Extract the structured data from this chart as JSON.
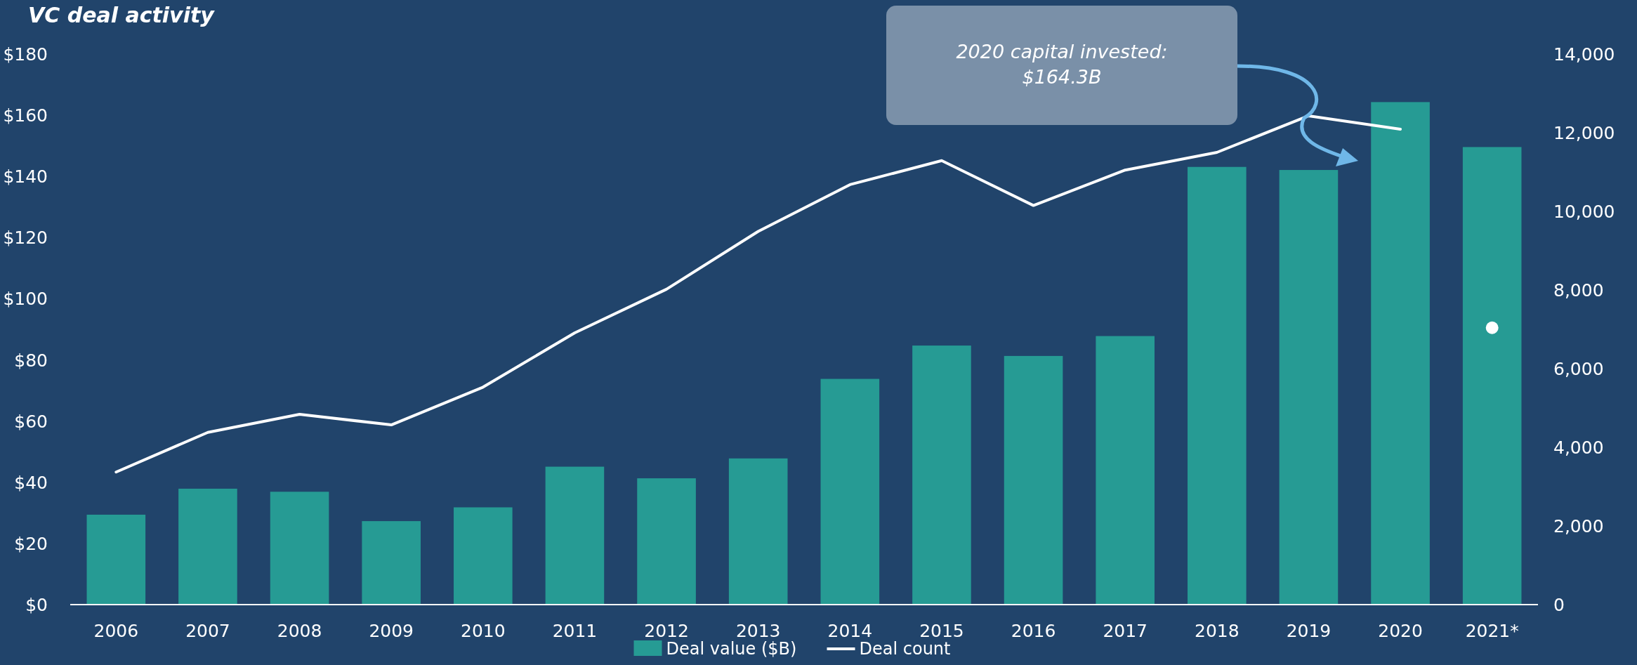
{
  "chart_data": {
    "type": "bar",
    "title": "VC deal activity",
    "categories": [
      "2006",
      "2007",
      "2008",
      "2009",
      "2010",
      "2011",
      "2012",
      "2013",
      "2014",
      "2015",
      "2016",
      "2017",
      "2018",
      "2019",
      "2020",
      "2021*"
    ],
    "series": [
      {
        "name": "Deal value ($B)",
        "color": "#269b94",
        "values": [
          29.4,
          37.9,
          36.9,
          27.3,
          31.8,
          45.1,
          41.3,
          47.8,
          73.8,
          84.7,
          81.3,
          87.8,
          143.1,
          142.1,
          164.3,
          149.6
        ]
      },
      {
        "name": "Deal count",
        "type": "line",
        "axis": "y2",
        "color": "#ffffff",
        "values": [
          3370,
          4380,
          4840,
          4570,
          5530,
          6910,
          8020,
          9490,
          10680,
          11290,
          10150,
          11050,
          11500,
          12430,
          12090,
          null
        ]
      },
      {
        "type": "scatter",
        "axis": "y2",
        "color": "#ffffff",
        "values": [
          null,
          null,
          null,
          null,
          null,
          null,
          null,
          null,
          null,
          null,
          null,
          null,
          null,
          null,
          null,
          7040
        ]
      }
    ],
    "ylim": [
      0,
      180
    ],
    "yticks": [
      {
        "value": 0,
        "label": "$0"
      },
      {
        "value": 20,
        "label": "$20"
      },
      {
        "value": 40,
        "label": "$40"
      },
      {
        "value": 60,
        "label": "$60"
      },
      {
        "value": 80,
        "label": "$80"
      },
      {
        "value": 100,
        "label": "$100"
      },
      {
        "value": 120,
        "label": "$120"
      },
      {
        "value": 140,
        "label": "$140"
      },
      {
        "value": 160,
        "label": "$160"
      },
      {
        "value": 180,
        "label": "$180"
      }
    ],
    "y2lim": [
      0,
      14000
    ],
    "y2ticks": [
      0,
      {
        "value": 2000,
        "label": "2,000"
      },
      {
        "value": 4000,
        "label": "4,000"
      },
      {
        "value": 6000,
        "label": "6,000"
      },
      {
        "value": 8000,
        "label": "8,000"
      },
      {
        "value": 10000,
        "label": "10,000"
      },
      {
        "value": 12000,
        "label": "12,000"
      },
      {
        "value": 14000,
        "label": "14,000"
      }
    ],
    "annotations": [
      "2020 capital invested:\n$164.3B"
    ],
    "legend": "bottom"
  }
}
